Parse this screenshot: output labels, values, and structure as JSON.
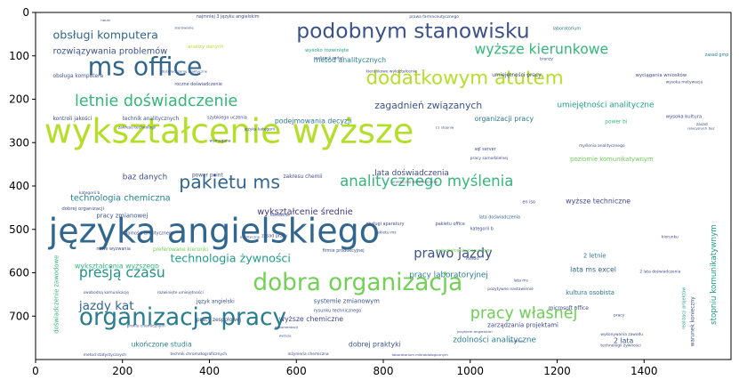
{
  "chart_data": {
    "type": "wordcloud",
    "title": "",
    "xlabel": "",
    "ylabel": "",
    "xlim": [
      0,
      1600
    ],
    "ylim": [
      800,
      0
    ],
    "x_ticks": [
      0,
      200,
      400,
      600,
      800,
      1000,
      1200,
      1400
    ],
    "y_ticks": [
      0,
      100,
      200,
      300,
      400,
      500,
      600,
      700
    ],
    "words": [
      {
        "text": "wykształcenie wyższe",
        "x": 20,
        "y": 300,
        "size": 78,
        "color": "#b5de2b"
      },
      {
        "text": "języka angielskiego",
        "x": 30,
        "y": 530,
        "size": 78,
        "color": "#31668e"
      },
      {
        "text": "organizacja pracy",
        "x": 100,
        "y": 720,
        "size": 54,
        "color": "#287d8e"
      },
      {
        "text": "dobra organizacja",
        "x": 500,
        "y": 640,
        "size": 54,
        "color": "#73d056"
      },
      {
        "text": "podobnym stanowisku",
        "x": 600,
        "y": 58,
        "size": 48,
        "color": "#3b528b"
      },
      {
        "text": "ms office",
        "x": 120,
        "y": 145,
        "size": 58,
        "color": "#31668e"
      },
      {
        "text": "dodatkowym atutem",
        "x": 760,
        "y": 165,
        "size": 44,
        "color": "#b5de2b"
      },
      {
        "text": "pakietu ms",
        "x": 330,
        "y": 405,
        "size": 42,
        "color": "#31668e"
      },
      {
        "text": "letnie doświadczenie",
        "x": 90,
        "y": 215,
        "size": 36,
        "color": "#35b779"
      },
      {
        "text": "analitycznego myślenia",
        "x": 700,
        "y": 400,
        "size": 34,
        "color": "#35b779"
      },
      {
        "text": "wyższe kierunkowe",
        "x": 1010,
        "y": 95,
        "size": 32,
        "color": "#35b779"
      },
      {
        "text": "pracy własnej",
        "x": 1000,
        "y": 705,
        "size": 36,
        "color": "#6ece58"
      },
      {
        "text": "presją czasu",
        "x": 100,
        "y": 610,
        "size": 32,
        "color": "#21918c"
      },
      {
        "text": "obsługi komputera",
        "x": 40,
        "y": 60,
        "size": 26,
        "color": "#31668e"
      },
      {
        "text": "prawo jazdy",
        "x": 870,
        "y": 565,
        "size": 30,
        "color": "#3b528b"
      },
      {
        "text": "jazdy kat",
        "x": 100,
        "y": 685,
        "size": 28,
        "color": "#31668e"
      },
      {
        "text": "technologia żywności",
        "x": 310,
        "y": 575,
        "size": 26,
        "color": "#1f9e89"
      },
      {
        "text": "zagadnień związanych",
        "x": 780,
        "y": 222,
        "size": 22,
        "color": "#3b528b"
      },
      {
        "text": "rozwiązywania problemów",
        "x": 40,
        "y": 95,
        "size": 20,
        "color": "#3b528b"
      },
      {
        "text": "wykształcenie średnie",
        "x": 510,
        "y": 466,
        "size": 20,
        "color": "#443983"
      },
      {
        "text": "technologia chemiczna",
        "x": 80,
        "y": 434,
        "size": 20,
        "color": "#26828e"
      },
      {
        "text": "lata doświadczenia",
        "x": 780,
        "y": 375,
        "size": 18,
        "color": "#3e4a89"
      },
      {
        "text": "umiejętności analityczne",
        "x": 1200,
        "y": 218,
        "size": 18,
        "color": "#1f9e89"
      },
      {
        "text": "zdolności analityczne",
        "x": 960,
        "y": 760,
        "size": 18,
        "color": "#287d8e"
      },
      {
        "text": "baz danych",
        "x": 200,
        "y": 385,
        "size": 18,
        "color": "#3e4a89"
      },
      {
        "text": "pracy laboratoryjnej",
        "x": 860,
        "y": 610,
        "size": 18,
        "color": "#287d8e"
      },
      {
        "text": "wykształcenia wyższego",
        "x": 90,
        "y": 590,
        "size": 16,
        "color": "#35b779"
      },
      {
        "text": "organizacji pracy",
        "x": 1010,
        "y": 250,
        "size": 16,
        "color": "#2a788e"
      },
      {
        "text": "ukończone studia",
        "x": 220,
        "y": 770,
        "size": 16,
        "color": "#26828e"
      },
      {
        "text": "wyższe chemiczne",
        "x": 560,
        "y": 712,
        "size": 16,
        "color": "#3e4a89"
      },
      {
        "text": "dobrej praktyki",
        "x": 720,
        "y": 770,
        "size": 16,
        "color": "#3b528b"
      },
      {
        "text": "wyższe techniczne",
        "x": 1220,
        "y": 440,
        "size": 16,
        "color": "#3e4a89"
      },
      {
        "text": "metod analitycznych",
        "x": 640,
        "y": 115,
        "size": 16,
        "color": "#26828e"
      },
      {
        "text": "podejmowania decyzji",
        "x": 550,
        "y": 255,
        "size": 16,
        "color": "#2a788e"
      },
      {
        "text": "zarządzania projektami",
        "x": 1040,
        "y": 725,
        "size": 14,
        "color": "#3e4a89"
      },
      {
        "text": "systemie zmianowym",
        "x": 640,
        "y": 670,
        "size": 14,
        "color": "#3b528b"
      },
      {
        "text": "kultura osobista",
        "x": 1220,
        "y": 650,
        "size": 14,
        "color": "#2a788e"
      },
      {
        "text": "lata ms excel",
        "x": 1230,
        "y": 598,
        "size": 16,
        "color": "#31668e"
      },
      {
        "text": "2 letnie",
        "x": 1260,
        "y": 565,
        "size": 14,
        "color": "#2a788e"
      },
      {
        "text": "2 lata",
        "x": 1330,
        "y": 762,
        "size": 16,
        "color": "#3b528b"
      },
      {
        "text": "stopniu komunikatywnym",
        "x": 1565,
        "y": 720,
        "size": 18,
        "color": "#1f9e89",
        "rotate": -90
      },
      {
        "text": "doświadczenie zawodowe",
        "x": 52,
        "y": 740,
        "size": 14,
        "color": "#35b779",
        "rotate": -90
      },
      {
        "text": "poziomie komunikatywnym",
        "x": 1230,
        "y": 343,
        "size": 14,
        "color": "#6ece58"
      },
      {
        "text": "lata doświadczenia",
        "x": 1020,
        "y": 475,
        "size": 10,
        "color": "#31668e"
      },
      {
        "text": "pracy zmianowej",
        "x": 140,
        "y": 473,
        "size": 14,
        "color": "#3b528b"
      },
      {
        "text": "kontroli jakości",
        "x": 40,
        "y": 248,
        "size": 12,
        "color": "#3e4a89"
      },
      {
        "text": "technik analitycznych",
        "x": 200,
        "y": 248,
        "size": 12,
        "color": "#3b528b"
      },
      {
        "text": "obsługa komputera",
        "x": 40,
        "y": 150,
        "size": 12,
        "color": "#3b528b"
      },
      {
        "text": "zakresu chemii",
        "x": 570,
        "y": 382,
        "size": 12,
        "color": "#3e4a89"
      },
      {
        "text": "power point",
        "x": 360,
        "y": 378,
        "size": 12,
        "color": "#3e4a89"
      },
      {
        "text": "język angielski",
        "x": 370,
        "y": 670,
        "size": 12,
        "color": "#3b528b"
      },
      {
        "text": "pracy zespołowej",
        "x": 370,
        "y": 712,
        "size": 12,
        "color": "#3e4a89"
      },
      {
        "text": "preferowane kierunki",
        "x": 270,
        "y": 550,
        "size": 12,
        "color": "#73d056"
      },
      {
        "text": "zasad gmp",
        "x": 1540,
        "y": 100,
        "size": 10,
        "color": "#287d8e"
      },
      {
        "text": "wyciągania wniosków",
        "x": 1380,
        "y": 148,
        "size": 11,
        "color": "#3e4a89"
      },
      {
        "text": "umiejętności pracy",
        "x": 1050,
        "y": 148,
        "size": 12,
        "color": "#3e4a89"
      },
      {
        "text": "power bi",
        "x": 1310,
        "y": 255,
        "size": 12,
        "color": "#35b779"
      },
      {
        "text": "wysoka kultura",
        "x": 1450,
        "y": 243,
        "size": 11,
        "color": "#3e4a89"
      },
      {
        "text": "sql server",
        "x": 1010,
        "y": 318,
        "size": 10,
        "color": "#3e4a89"
      },
      {
        "text": "dobrej organizacji",
        "x": 60,
        "y": 455,
        "size": 11,
        "color": "#3b528b"
      },
      {
        "text": "analizy danych",
        "x": 350,
        "y": 82,
        "size": 11,
        "color": "#b5de2b"
      },
      {
        "text": "wysoko rozwinięte",
        "x": 620,
        "y": 90,
        "size": 11,
        "color": "#1f9e89"
      },
      {
        "text": "realizacji zadań",
        "x": 640,
        "y": 108,
        "size": 9,
        "color": "#3e4a89"
      },
      {
        "text": "najmniej 3 języku angielskim",
        "x": 370,
        "y": 12,
        "size": 10,
        "color": "#3e4a89"
      },
      {
        "text": "prawa farmaceutycznego",
        "x": 860,
        "y": 12,
        "size": 9,
        "color": "#3e4a89"
      },
      {
        "text": "laboratorium",
        "x": 1190,
        "y": 40,
        "size": 10,
        "color": "#2a788e"
      },
      {
        "text": "roczne doświadczenie",
        "x": 320,
        "y": 168,
        "size": 10,
        "color": "#3e4a89"
      },
      {
        "text": "szybkiego uczenia",
        "x": 395,
        "y": 245,
        "size": 10,
        "color": "#3e4a89"
      },
      {
        "text": "zakresu technologii",
        "x": 190,
        "y": 268,
        "size": 9,
        "color": "#3e4a89"
      },
      {
        "text": "wymagana",
        "x": 400,
        "y": 298,
        "size": 9,
        "color": "#3e4a89"
      },
      {
        "text": "pracy samodzielnej",
        "x": 1000,
        "y": 338,
        "size": 9,
        "color": "#3e4a89"
      },
      {
        "text": "obsługi aparatury",
        "x": 760,
        "y": 490,
        "size": 10,
        "color": "#3e4a89"
      },
      {
        "text": "pakietu office",
        "x": 920,
        "y": 490,
        "size": 10,
        "color": "#3b528b"
      },
      {
        "text": "en iso",
        "x": 1120,
        "y": 440,
        "size": 10,
        "color": "#3e4a89"
      },
      {
        "text": "kategorii b",
        "x": 1000,
        "y": 502,
        "size": 10,
        "color": "#3e4a89"
      },
      {
        "text": "zasad pracy",
        "x": 520,
        "y": 518,
        "size": 10,
        "color": "#3e4a89"
      },
      {
        "text": "zdolności analitycznego",
        "x": 200,
        "y": 512,
        "size": 10,
        "color": "#3e4a89"
      },
      {
        "text": "firmie produkcyjnej",
        "x": 660,
        "y": 552,
        "size": 10,
        "color": "#3b528b"
      },
      {
        "text": "wykształcenie kierunkowe",
        "x": 920,
        "y": 552,
        "size": 10,
        "color": "#73d056"
      },
      {
        "text": "nowe wyzwania",
        "x": 140,
        "y": 548,
        "size": 10,
        "color": "#3e4a89"
      },
      {
        "text": "swobodną komunikację",
        "x": 110,
        "y": 648,
        "size": 9,
        "color": "#3e4a89"
      },
      {
        "text": "rozwinięte umiejętności",
        "x": 280,
        "y": 648,
        "size": 9,
        "color": "#3e4a89"
      },
      {
        "text": "rysunku technicznego",
        "x": 640,
        "y": 690,
        "size": 10,
        "color": "#3e4a89"
      },
      {
        "text": "microsoft office",
        "x": 1180,
        "y": 685,
        "size": 12,
        "color": "#3e4a89"
      },
      {
        "text": "pozytywne nastawienie",
        "x": 1040,
        "y": 640,
        "size": 9,
        "color": "#3e4a89"
      },
      {
        "text": "wykonywania zawodu",
        "x": 1300,
        "y": 745,
        "size": 9,
        "color": "#3e4a89"
      },
      {
        "text": "technik chromatograficznych",
        "x": 310,
        "y": 790,
        "size": 9,
        "color": "#3e4a89"
      },
      {
        "text": "inżynieria chemiczna",
        "x": 580,
        "y": 790,
        "size": 9,
        "color": "#3e4a89"
      },
      {
        "text": "metod statystycznych",
        "x": 110,
        "y": 792,
        "size": 9,
        "color": "#3e4a89"
      },
      {
        "text": "laboratorium mikrobiologicznym",
        "x": 820,
        "y": 792,
        "size": 8,
        "color": "#3e4a89"
      },
      {
        "text": "jezykiem angielskim",
        "x": 970,
        "y": 738,
        "size": 8,
        "color": "#3e4a89"
      },
      {
        "text": "technologii żywności",
        "x": 1300,
        "y": 770,
        "size": 9,
        "color": "#3e4a89"
      },
      {
        "text": "warunek konieczny",
        "x": 1515,
        "y": 770,
        "size": 12,
        "color": "#3b528b",
        "rotate": -90
      },
      {
        "text": "realizacji projektów",
        "x": 1495,
        "y": 730,
        "size": 10,
        "color": "#1f9e89",
        "rotate": -90
      },
      {
        "text": "wysoka motywacja",
        "x": 1450,
        "y": 163,
        "size": 9,
        "color": "#3e4a89"
      },
      {
        "text": "lata ms",
        "x": 1100,
        "y": 620,
        "size": 9,
        "color": "#3e4a89"
      },
      {
        "text": "pakietu ms",
        "x": 780,
        "y": 510,
        "size": 9,
        "color": "#3e4a89"
      },
      {
        "text": "kierunku",
        "x": 1440,
        "y": 520,
        "size": 9,
        "color": "#3e4a89"
      },
      {
        "text": "profilu chemicznym",
        "x": 210,
        "y": 725,
        "size": 9,
        "color": "#3e4a89"
      },
      {
        "text": "dokumentacji",
        "x": 550,
        "y": 728,
        "size": 8,
        "color": "#3e4a89"
      },
      {
        "text": "2 lata doświadczenia",
        "x": 1390,
        "y": 600,
        "size": 9,
        "color": "#3e4a89"
      },
      {
        "text": "myślenia analitycznego",
        "x": 1250,
        "y": 310,
        "size": 9,
        "color": "#3e4a89"
      },
      {
        "text": "kierunkowe wykształcenie",
        "x": 760,
        "y": 138,
        "size": 9,
        "color": "#3e4a89"
      },
      {
        "text": "dziedzinie",
        "x": 540,
        "y": 470,
        "size": 9,
        "color": "#3e4a89"
      },
      {
        "text": "języka kategorii",
        "x": 480,
        "y": 272,
        "size": 9,
        "color": "#3e4a89"
      },
      {
        "text": "kategorii b",
        "x": 100,
        "y": 418,
        "size": 9,
        "color": "#3e4a89"
      },
      {
        "text": "pracy",
        "x": 1330,
        "y": 700,
        "size": 9,
        "color": "#3e4a89"
      },
      {
        "text": "branży",
        "x": 1160,
        "y": 110,
        "size": 9,
        "color": "#3e4a89"
      },
      {
        "text": "metod",
        "x": 990,
        "y": 570,
        "size": 9,
        "color": "#3e4a89"
      },
      {
        "text": "zasad",
        "x": 1520,
        "y": 260,
        "size": 9,
        "color": "#3e4a89"
      },
      {
        "text": "doświadczenie praktyczne",
        "x": 290,
        "y": 138,
        "size": 8,
        "color": "#3e4a89"
      },
      {
        "text": "praktyczne doświadczenie",
        "x": 820,
        "y": 393,
        "size": 8,
        "color": "#3e4a89"
      },
      {
        "text": "nauki",
        "x": 150,
        "y": 20,
        "size": 8,
        "color": "#3e4a89"
      },
      {
        "text": "analityczne",
        "x": 470,
        "y": 520,
        "size": 8,
        "color": "#3e4a89"
      },
      {
        "text": "relacyjnych baz",
        "x": 1500,
        "y": 270,
        "size": 8,
        "color": "#3e4a89"
      },
      {
        "text": "wyższe",
        "x": 560,
        "y": 748,
        "size": 8,
        "color": "#3e4a89"
      },
      {
        "text": "11 stopnia",
        "x": 920,
        "y": 268,
        "size": 8,
        "color": "#3e4a89"
      },
      {
        "text": "sterowanie",
        "x": 320,
        "y": 38,
        "size": 8,
        "color": "#3e4a89"
      },
      {
        "text": "studiów",
        "x": 1090,
        "y": 760,
        "size": 8,
        "color": "#3e4a89"
      }
    ]
  }
}
